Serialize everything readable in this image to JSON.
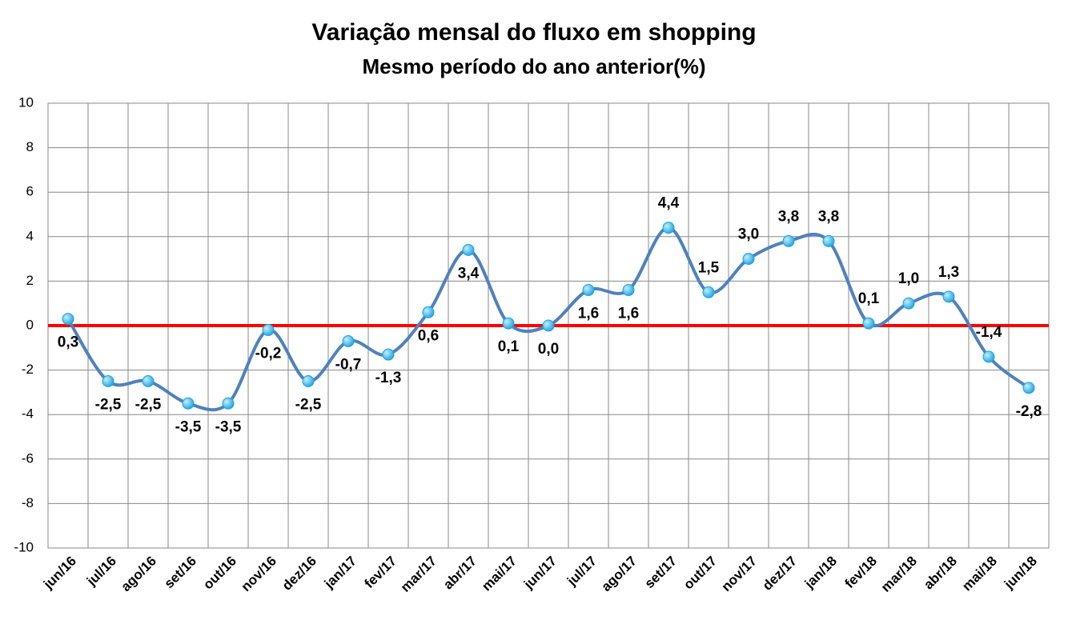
{
  "chart_data": {
    "type": "line",
    "title": "Variação mensal do fluxo em shopping",
    "subtitle": "Mesmo período do ano anterior(%)",
    "categories": [
      "jun/16",
      "jul/16",
      "ago/16",
      "set/16",
      "out/16",
      "nov/16",
      "dez/16",
      "jan/17",
      "fev/17",
      "mar/17",
      "abr/17",
      "mai/17",
      "jun/17",
      "jul/17",
      "ago/17",
      "set/17",
      "out/17",
      "nov/17",
      "dez/17",
      "jan/18",
      "fev/18",
      "mar/18",
      "abr/18",
      "mai/18",
      "jun/18"
    ],
    "values": [
      0.3,
      -2.5,
      -2.5,
      -3.5,
      -3.5,
      -0.2,
      -2.5,
      -0.7,
      -1.3,
      0.6,
      3.4,
      0.1,
      0.0,
      1.6,
      1.6,
      4.4,
      1.5,
      3.0,
      3.8,
      3.8,
      0.1,
      1.0,
      1.3,
      -1.4,
      -2.8
    ],
    "value_labels": [
      "0,3",
      "-2,5",
      "-2,5",
      "-3,5",
      "-3,5",
      "-0,2",
      "-2,5",
      "-0,7",
      "-1,3",
      "0,6",
      "3,4",
      "0,1",
      "0,0",
      "1,6",
      "1,6",
      "4,4",
      "1,5",
      "3,0",
      "3,8",
      "3,8",
      "0,1",
      "1,0",
      "1,3",
      "-1,4",
      "-2,8"
    ],
    "color": "#4f81bd",
    "marker_color": "#1fa3e0",
    "ylim": [
      -10,
      10
    ],
    "yticks": [
      -10,
      -8,
      -6,
      -4,
      -2,
      0,
      2,
      4,
      6,
      8,
      10
    ],
    "grid": true,
    "reference_line": {
      "value": 0,
      "color": "#ff0000"
    }
  }
}
